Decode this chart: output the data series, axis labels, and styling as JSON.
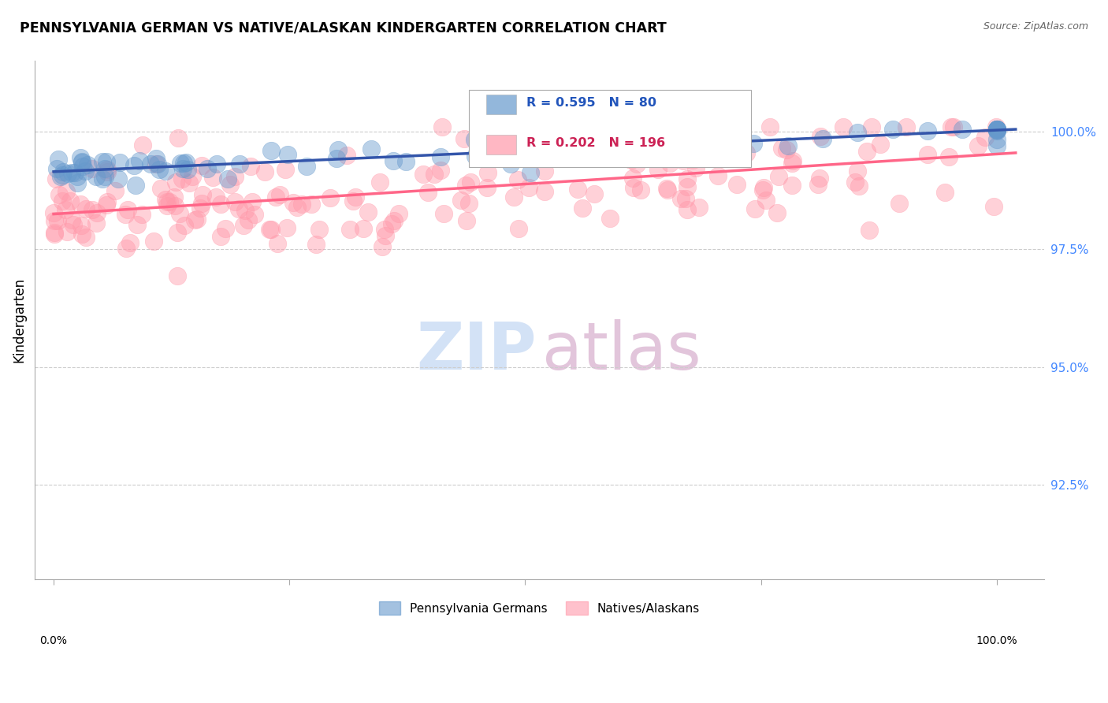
{
  "title": "PENNSYLVANIA GERMAN VS NATIVE/ALASKAN KINDERGARTEN CORRELATION CHART",
  "source": "Source: ZipAtlas.com",
  "ylabel": "Kindergarten",
  "ytick_values": [
    92.5,
    95.0,
    97.5,
    100.0
  ],
  "ylim": [
    90.5,
    101.5
  ],
  "xlim": [
    -0.02,
    1.05
  ],
  "legend_r_blue": "R = 0.595",
  "legend_n_blue": "N = 80",
  "legend_r_pink": "R = 0.202",
  "legend_n_pink": "N = 196",
  "blue_color": "#6699CC",
  "pink_color": "#FF99AA",
  "blue_line_color": "#3355AA",
  "pink_line_color": "#FF6688",
  "legend_label_blue": "Pennsylvania Germans",
  "legend_label_pink": "Natives/Alaskans",
  "blue_line_x": [
    0.0,
    1.02
  ],
  "blue_line_y": [
    99.15,
    100.05
  ],
  "pink_line_x": [
    0.0,
    1.02
  ],
  "pink_line_y": [
    98.25,
    99.55
  ]
}
